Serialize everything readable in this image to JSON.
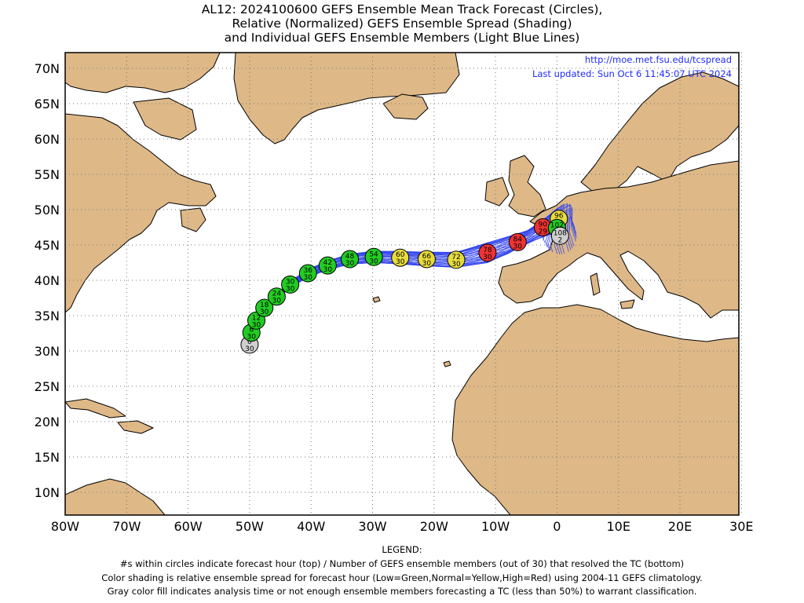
{
  "title": {
    "line1": "AL12: 2024100600 GEFS Ensemble Mean Track Forecast (Circles),",
    "line2": "Relative (Normalized) GEFS Ensemble Spread (Shading)",
    "line3": "and Individual GEFS Ensemble Members (Light Blue Lines)"
  },
  "credits": {
    "url": "http://moe.met.fsu.edu/tcspread",
    "updated": "Last updated: Sun Oct 6 11:45:07 UTC 2024"
  },
  "axes": {
    "lat_labels": [
      "70N",
      "65N",
      "60N",
      "55N",
      "50N",
      "45N",
      "40N",
      "35N",
      "30N",
      "25N",
      "20N",
      "15N",
      "10N"
    ],
    "lon_labels": [
      "80W",
      "70W",
      "60W",
      "50W",
      "40W",
      "30W",
      "20W",
      "10W",
      "0",
      "10E",
      "20E",
      "30E"
    ]
  },
  "legend": {
    "heading": "LEGEND:",
    "line1": "#s within circles indicate forecast hour (top) / Number of GEFS ensemble members (out of 30) that resolved the TC (bottom)",
    "line2": "Color shading is relative ensemble spread for forecast hour (Low=Green,Normal=Yellow,High=Red) using 2004-11 GEFS climatology.",
    "line3": "Gray color fill indicates analysis time or not enough ensemble members forecasting a TC (less than 50%) to warrant classification."
  },
  "colors": {
    "land": "#deb887",
    "ocean": "#ffffff",
    "member_track": "#3344ee",
    "low": "#22cc22",
    "normal": "#e8dc3c",
    "high": "#ee3333",
    "gray": "#cfcfcf"
  },
  "track_points": [
    {
      "hour": "0",
      "members": "30",
      "spread": "gray",
      "lon": -50.0,
      "lat": 30.9
    },
    {
      "hour": "6",
      "members": "30",
      "spread": "low",
      "lon": -49.7,
      "lat": 32.6
    },
    {
      "hour": "12",
      "members": "30",
      "spread": "low",
      "lon": -48.9,
      "lat": 34.3
    },
    {
      "hour": "18",
      "members": "30",
      "spread": "low",
      "lon": -47.6,
      "lat": 36.1
    },
    {
      "hour": "24",
      "members": "30",
      "spread": "low",
      "lon": -45.6,
      "lat": 37.7
    },
    {
      "hour": "30",
      "members": "30",
      "spread": "low",
      "lon": -43.4,
      "lat": 39.4
    },
    {
      "hour": "36",
      "members": "30",
      "spread": "low",
      "lon": -40.5,
      "lat": 41.0
    },
    {
      "hour": "42",
      "members": "30",
      "spread": "low",
      "lon": -37.3,
      "lat": 42.1
    },
    {
      "hour": "48",
      "members": "30",
      "spread": "low",
      "lon": -33.7,
      "lat": 43.0
    },
    {
      "hour": "54",
      "members": "30",
      "spread": "low",
      "lon": -29.8,
      "lat": 43.3
    },
    {
      "hour": "60",
      "members": "30",
      "spread": "normal",
      "lon": -25.5,
      "lat": 43.2
    },
    {
      "hour": "66",
      "members": "30",
      "spread": "normal",
      "lon": -21.2,
      "lat": 43.0
    },
    {
      "hour": "72",
      "members": "30",
      "spread": "normal",
      "lon": -16.4,
      "lat": 42.9
    },
    {
      "hour": "78",
      "members": "30",
      "spread": "high",
      "lon": -11.3,
      "lat": 43.9
    },
    {
      "hour": "84",
      "members": "30",
      "spread": "high",
      "lon": -6.4,
      "lat": 45.4
    },
    {
      "hour": "90",
      "members": "29",
      "spread": "high",
      "lon": -2.3,
      "lat": 47.5
    },
    {
      "hour": "96",
      "members": "29",
      "spread": "normal",
      "lon": 0.3,
      "lat": 48.7
    },
    {
      "hour": "102",
      "members": "27",
      "spread": "low",
      "lon": 0.0,
      "lat": 47.4
    },
    {
      "hour": "108",
      "members": "2",
      "spread": "gray",
      "lon": 0.5,
      "lat": 46.3
    }
  ]
}
